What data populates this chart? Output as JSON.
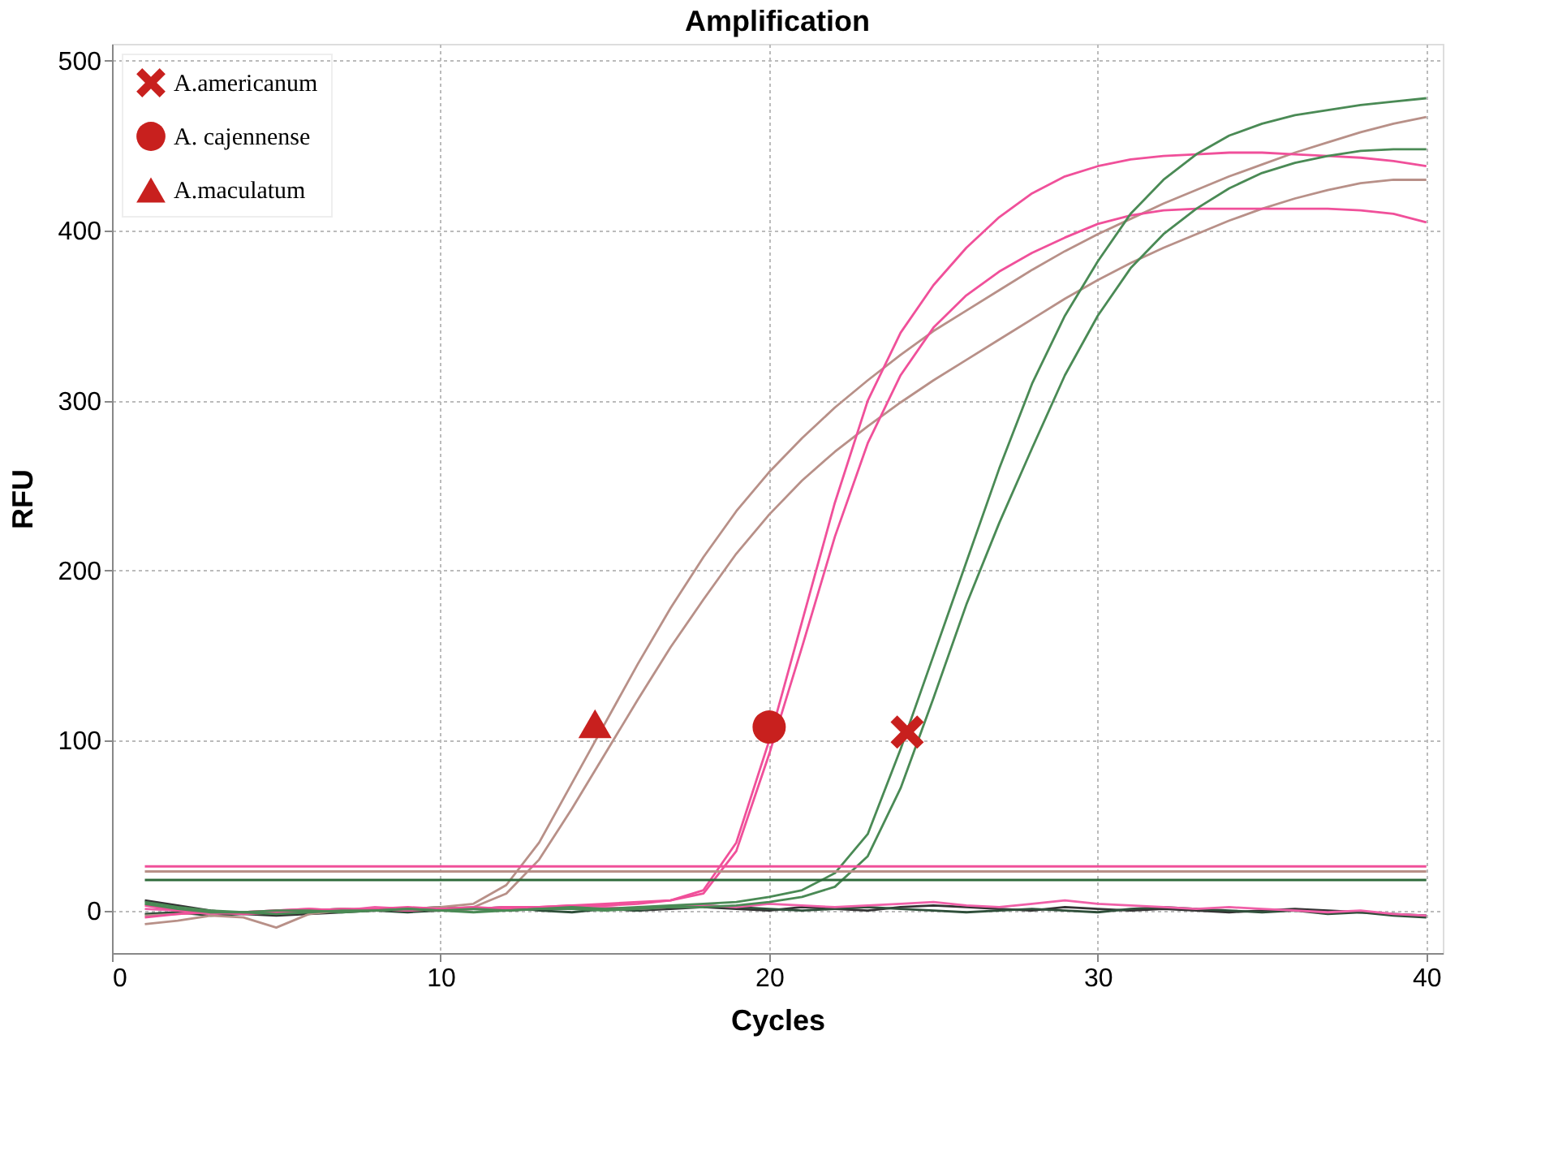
{
  "chart_data": {
    "type": "line",
    "title": "Amplification",
    "xlabel": "Cycles",
    "ylabel": "RFU",
    "x": [
      1,
      2,
      3,
      4,
      5,
      6,
      7,
      8,
      9,
      10,
      11,
      12,
      13,
      14,
      15,
      16,
      17,
      18,
      19,
      20,
      21,
      22,
      23,
      24,
      25,
      26,
      27,
      28,
      29,
      30,
      31,
      32,
      33,
      34,
      35,
      36,
      37,
      38,
      39,
      40
    ],
    "xlim": [
      0,
      40.5
    ],
    "xticks": [
      0,
      10,
      20,
      30,
      40
    ],
    "ylim": [
      -25,
      510
    ],
    "yticks": [
      0,
      100,
      200,
      300,
      400,
      500
    ],
    "grid": true,
    "legend": "top left",
    "line_style": "solid",
    "series": [
      {
        "color": "#333333",
        "values": [
          6,
          3,
          0,
          -2,
          -3,
          -2,
          -1,
          0,
          1,
          2,
          1,
          0,
          1,
          2,
          1,
          0,
          1,
          2,
          1,
          0,
          2,
          1,
          0,
          2,
          3,
          2,
          1,
          0,
          2,
          1,
          0,
          1,
          0,
          -1,
          0,
          1,
          0,
          -1,
          -2,
          -3
        ]
      },
      {
        "color": "#2f4f3a",
        "values": [
          -2,
          -1,
          -3,
          -2,
          -1,
          0,
          1,
          0,
          -1,
          0,
          1,
          2,
          0,
          -1,
          1,
          0,
          2,
          3,
          2,
          1,
          0,
          1,
          2,
          1,
          0,
          -1,
          0,
          1,
          0,
          -1,
          1,
          2,
          1,
          0,
          -1,
          0,
          -2,
          -1,
          -3,
          -4
        ]
      },
      {
        "color": "#f060a8",
        "values": [
          1,
          0,
          -2,
          -1,
          0,
          1,
          0,
          2,
          1,
          0,
          1,
          2,
          1,
          3,
          2,
          1,
          2,
          3,
          2,
          4,
          3,
          2,
          3,
          4,
          5,
          3,
          2,
          4,
          6,
          4,
          3,
          2,
          1,
          2,
          1,
          0,
          -1,
          0,
          -2,
          -3
        ]
      },
      {
        "color": "#b89088",
        "values": [
          -3,
          -2,
          -1,
          -2,
          -1,
          0,
          1,
          0,
          1,
          2,
          4,
          15,
          40,
          75,
          110,
          145,
          178,
          208,
          235,
          258,
          278,
          296,
          312,
          327,
          341,
          353,
          365,
          377,
          388,
          398,
          407,
          416,
          424,
          432,
          439,
          446,
          452,
          458,
          463,
          467
        ]
      },
      {
        "color": "#b89088",
        "values": [
          -8,
          -6,
          -3,
          -4,
          -10,
          -2,
          0,
          1,
          0,
          1,
          2,
          10,
          30,
          60,
          92,
          124,
          155,
          183,
          210,
          233,
          253,
          270,
          285,
          299,
          312,
          324,
          336,
          348,
          360,
          371,
          381,
          390,
          398,
          406,
          413,
          419,
          424,
          428,
          430,
          430
        ]
      },
      {
        "color": "#f0509a",
        "values": [
          3,
          0,
          -1,
          -2,
          -1,
          0,
          1,
          1,
          0,
          1,
          1,
          2,
          2,
          3,
          3,
          4,
          6,
          12,
          40,
          100,
          170,
          240,
          300,
          340,
          368,
          390,
          408,
          422,
          432,
          438,
          442,
          444,
          445,
          446,
          446,
          445,
          444,
          443,
          441,
          438
        ]
      },
      {
        "color": "#f0509a",
        "values": [
          -4,
          -2,
          -1,
          -1,
          0,
          1,
          0,
          1,
          2,
          1,
          2,
          1,
          2,
          3,
          4,
          5,
          6,
          10,
          35,
          92,
          155,
          220,
          275,
          315,
          343,
          362,
          376,
          387,
          396,
          404,
          409,
          412,
          413,
          413,
          413,
          413,
          413,
          412,
          410,
          405
        ]
      },
      {
        "color": "#4a8a55",
        "values": [
          4,
          1,
          -1,
          -1,
          0,
          0,
          -1,
          0,
          1,
          0,
          1,
          0,
          1,
          2,
          1,
          2,
          3,
          4,
          5,
          8,
          12,
          22,
          45,
          95,
          150,
          205,
          260,
          310,
          350,
          382,
          410,
          430,
          445,
          456,
          463,
          468,
          471,
          474,
          476,
          478
        ]
      },
      {
        "color": "#4a8a55",
        "values": [
          5,
          2,
          0,
          -1,
          -2,
          -1,
          0,
          0,
          1,
          0,
          -1,
          0,
          1,
          1,
          0,
          1,
          2,
          2,
          3,
          5,
          8,
          14,
          32,
          72,
          125,
          180,
          228,
          272,
          315,
          350,
          378,
          398,
          413,
          425,
          434,
          440,
          444,
          447,
          448,
          448
        ]
      },
      {
        "type": "scatter",
        "name": "A.americanum",
        "color": "#c8201e",
        "marker": "cross",
        "x": [
          24.2
        ],
        "values": [
          105
        ]
      },
      {
        "type": "scatter",
        "name": "A. cajennense",
        "color": "#c8201e",
        "marker": "circle",
        "x": [
          20
        ],
        "values": [
          108
        ]
      },
      {
        "type": "scatter",
        "name": "A.maculatum",
        "color": "#c8201e",
        "marker": "triangle",
        "x": [
          14.7
        ],
        "values": [
          110
        ]
      }
    ],
    "ref_lines": [
      {
        "axis": "y",
        "value": 26,
        "color": "#f0509a"
      },
      {
        "axis": "y",
        "value": 23,
        "color": "#b89088"
      },
      {
        "axis": "y",
        "value": 18,
        "color": "#2e6b3a"
      }
    ]
  }
}
